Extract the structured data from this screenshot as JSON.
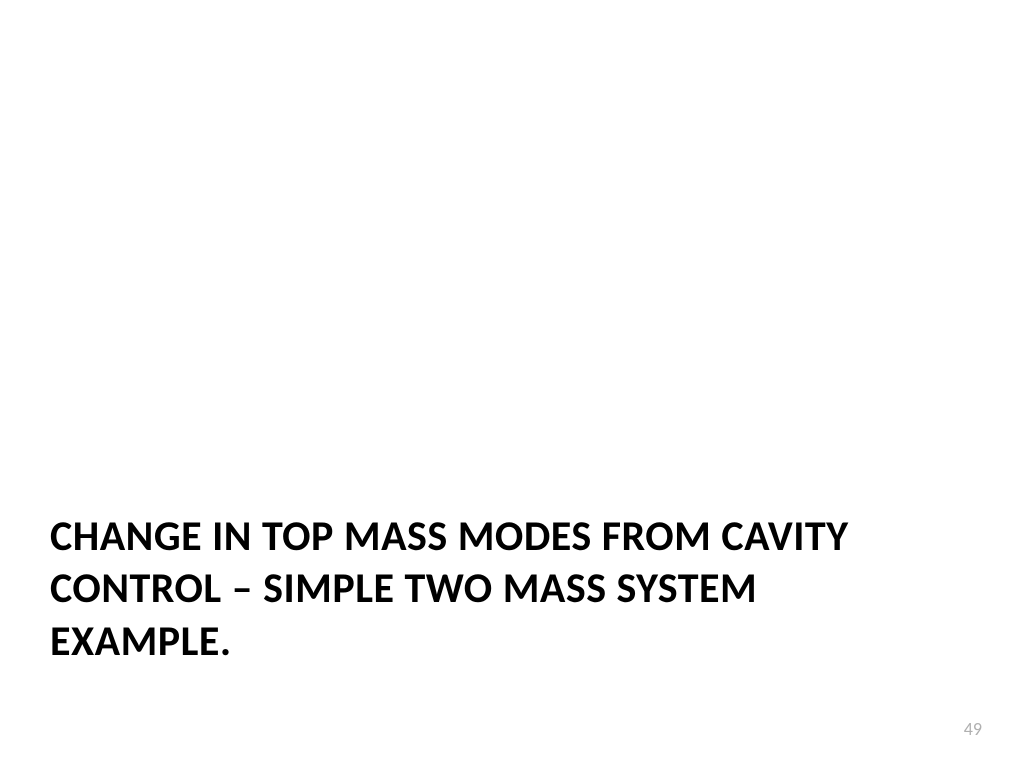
{
  "slide": {
    "title": "CHANGE IN TOP MASS MODES FROM CAVITY CONTROL – SIMPLE TWO MASS SYSTEM EXAMPLE.",
    "page_number": "49",
    "title_fontsize": 42,
    "title_color": "#000000",
    "page_number_fontsize": 18,
    "page_number_color": "#b0b0b0",
    "background_color": "#ffffff"
  }
}
